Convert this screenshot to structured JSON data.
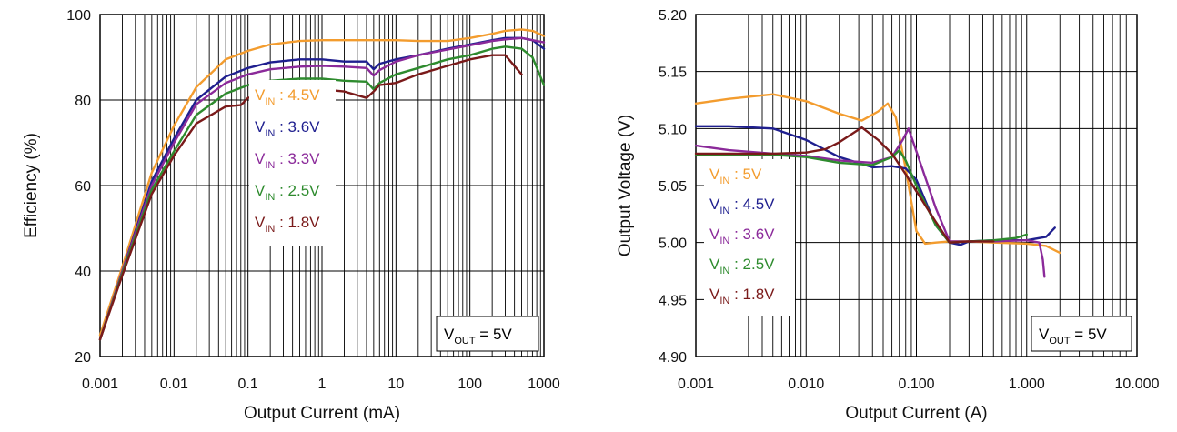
{
  "chart_data": [
    {
      "type": "line",
      "xscale": "log",
      "xlim": [
        0.001,
        1000
      ],
      "ylim": [
        20,
        100
      ],
      "xlabel": "Output Current (mA)",
      "ylabel": "Efficiency (%)",
      "xticks": [
        "0.001",
        "0.01",
        "0.1",
        "1",
        "10",
        "100",
        "1000"
      ],
      "yticks": [
        "20",
        "40",
        "60",
        "80",
        "100"
      ],
      "grid": true,
      "legend": "center-left",
      "annotation": {
        "main": "V",
        "sub": "OUT",
        "rest": " = 5V"
      },
      "series": [
        {
          "name": "VIN : 4.5V",
          "main": "V",
          "sub": "IN",
          "rest": " : 4.5V",
          "color": "#F39C2E",
          "x": [
            0.001,
            0.002,
            0.005,
            0.01,
            0.02,
            0.05,
            0.1,
            0.2,
            0.5,
            1,
            2,
            5,
            10,
            20,
            50,
            100,
            200,
            300,
            500,
            700,
            1000
          ],
          "y": [
            25,
            41,
            63,
            74,
            83,
            89.5,
            91.5,
            93,
            93.8,
            94,
            94,
            94,
            94,
            93.8,
            93.8,
            94.5,
            95.5,
            96.2,
            96.5,
            96.2,
            95
          ]
        },
        {
          "name": "VIN : 3.6V",
          "main": "V",
          "sub": "IN",
          "rest": " : 3.6V",
          "color": "#1F1F8F",
          "x": [
            0.001,
            0.002,
            0.005,
            0.01,
            0.02,
            0.05,
            0.1,
            0.2,
            0.5,
            1,
            2,
            4,
            5,
            6,
            10,
            20,
            50,
            100,
            200,
            300,
            500,
            700,
            1000
          ],
          "y": [
            24,
            40,
            61,
            71,
            80,
            85.5,
            87.5,
            88.8,
            89.5,
            89.5,
            89,
            89,
            87.2,
            88.5,
            89.5,
            90.5,
            92,
            93,
            94,
            94.5,
            94.5,
            94,
            92
          ]
        },
        {
          "name": "VIN : 3.3V",
          "main": "V",
          "sub": "IN",
          "rest": " : 3.3V",
          "color": "#8B2A9A",
          "x": [
            0.001,
            0.002,
            0.005,
            0.01,
            0.02,
            0.05,
            0.1,
            0.2,
            0.5,
            1,
            2,
            4,
            5,
            6,
            10,
            20,
            50,
            100,
            200,
            300,
            500,
            700,
            1000
          ],
          "y": [
            24,
            40,
            60,
            70,
            79,
            84,
            86,
            87.2,
            87.8,
            88,
            87.8,
            87.5,
            85.7,
            87,
            89,
            90.5,
            91.8,
            92.8,
            93.8,
            94.2,
            94.5,
            94,
            93.5
          ]
        },
        {
          "name": "VIN : 2.5V",
          "main": "V",
          "sub": "IN",
          "rest": " : 2.5V",
          "color": "#2E8B2E",
          "x": [
            0.001,
            0.002,
            0.005,
            0.01,
            0.02,
            0.05,
            0.1,
            0.2,
            0.5,
            1,
            2,
            4,
            5,
            6,
            10,
            20,
            50,
            100,
            200,
            300,
            500,
            700,
            1000
          ],
          "y": [
            24,
            39.5,
            59,
            68,
            76.5,
            81.5,
            83.5,
            84.5,
            85,
            85,
            84.5,
            84.3,
            82.5,
            84,
            86,
            87.5,
            89.5,
            90.5,
            92,
            92.5,
            92,
            90,
            83.5
          ]
        },
        {
          "name": "VIN : 1.8V",
          "main": "V",
          "sub": "IN",
          "rest": " : 1.8V",
          "color": "#7A1A1A",
          "x": [
            0.001,
            0.002,
            0.005,
            0.01,
            0.02,
            0.05,
            0.08,
            0.1,
            0.2,
            0.5,
            1,
            2,
            4,
            5,
            6,
            10,
            20,
            50,
            100,
            200,
            300,
            500
          ],
          "y": [
            24,
            39,
            58,
            67,
            74.5,
            78.5,
            78.8,
            80.5,
            81.5,
            82.3,
            82.5,
            82,
            80.5,
            82,
            83.5,
            84,
            86,
            88,
            89.5,
            90.5,
            90.5,
            86
          ]
        }
      ]
    },
    {
      "type": "line",
      "xscale": "log",
      "xlim": [
        0.001,
        10
      ],
      "ylim": [
        4.9,
        5.2
      ],
      "xlabel": "Output Current (A)",
      "ylabel": "Output Voltage (V)",
      "xticks": [
        "0.001",
        "0.010",
        "0.100",
        "1.000",
        "10.000"
      ],
      "yticks": [
        "4.90",
        "4.95",
        "5.00",
        "5.05",
        "5.10",
        "5.15",
        "5.20"
      ],
      "grid": true,
      "legend": "center-left",
      "annotation": {
        "main": "V",
        "sub": "OUT",
        "rest": " = 5V"
      },
      "series": [
        {
          "name": "VIN : 5V",
          "main": "V",
          "sub": "IN",
          "rest": " : 5V",
          "color": "#F39C2E",
          "x": [
            0.001,
            0.002,
            0.005,
            0.01,
            0.02,
            0.032,
            0.045,
            0.055,
            0.065,
            0.08,
            0.1,
            0.12,
            0.15,
            0.2,
            0.3,
            0.5,
            1,
            1.5,
            2
          ],
          "y": [
            5.122,
            5.126,
            5.13,
            5.124,
            5.113,
            5.107,
            5.115,
            5.122,
            5.11,
            5.065,
            5.01,
            4.999,
            5.0,
            5.001,
            5.001,
            5.0,
            4.999,
            4.997,
            4.991
          ]
        },
        {
          "name": "VIN : 4.5V",
          "main": "V",
          "sub": "IN",
          "rest": " : 4.5V",
          "color": "#1F1F8F",
          "x": [
            0.001,
            0.002,
            0.005,
            0.01,
            0.02,
            0.04,
            0.06,
            0.08,
            0.1,
            0.15,
            0.2,
            0.25,
            0.3,
            0.5,
            1,
            1.5,
            1.8
          ],
          "y": [
            5.102,
            5.102,
            5.1,
            5.09,
            5.075,
            5.066,
            5.067,
            5.065,
            5.055,
            5.015,
            5.0,
            4.998,
            5.001,
            5.002,
            5.002,
            5.005,
            5.013
          ]
        },
        {
          "name": "VIN : 3.6V",
          "main": "V",
          "sub": "IN",
          "rest": " : 3.6V",
          "color": "#8B2A9A",
          "x": [
            0.001,
            0.002,
            0.005,
            0.01,
            0.02,
            0.04,
            0.06,
            0.075,
            0.085,
            0.1,
            0.15,
            0.2,
            0.3,
            0.5,
            1,
            1.3,
            1.4,
            1.45
          ],
          "y": [
            5.085,
            5.081,
            5.078,
            5.076,
            5.072,
            5.07,
            5.075,
            5.09,
            5.1,
            5.08,
            5.03,
            5.001,
            5.001,
            5.001,
            5.002,
            5.0,
            4.985,
            4.97
          ]
        },
        {
          "name": "VIN : 2.5V",
          "main": "V",
          "sub": "IN",
          "rest": " : 2.5V",
          "color": "#2E8B2E",
          "x": [
            0.001,
            0.002,
            0.005,
            0.01,
            0.02,
            0.04,
            0.06,
            0.07,
            0.08,
            0.1,
            0.15,
            0.2,
            0.3,
            0.5,
            0.8,
            1.0
          ],
          "y": [
            5.077,
            5.077,
            5.077,
            5.075,
            5.07,
            5.068,
            5.075,
            5.081,
            5.072,
            5.05,
            5.015,
            5.0,
            5.001,
            5.002,
            5.004,
            5.007
          ]
        },
        {
          "name": "VIN : 1.8V",
          "main": "V",
          "sub": "IN",
          "rest": " : 1.8V",
          "color": "#7A1A1A",
          "x": [
            0.001,
            0.002,
            0.005,
            0.01,
            0.015,
            0.02,
            0.032,
            0.045,
            0.06,
            0.08,
            0.1,
            0.15,
            0.2,
            0.3,
            0.5
          ],
          "y": [
            5.078,
            5.078,
            5.078,
            5.079,
            5.082,
            5.088,
            5.101,
            5.09,
            5.078,
            5.06,
            5.045,
            5.018,
            5.0,
            5.001,
            5.001
          ]
        }
      ]
    }
  ]
}
